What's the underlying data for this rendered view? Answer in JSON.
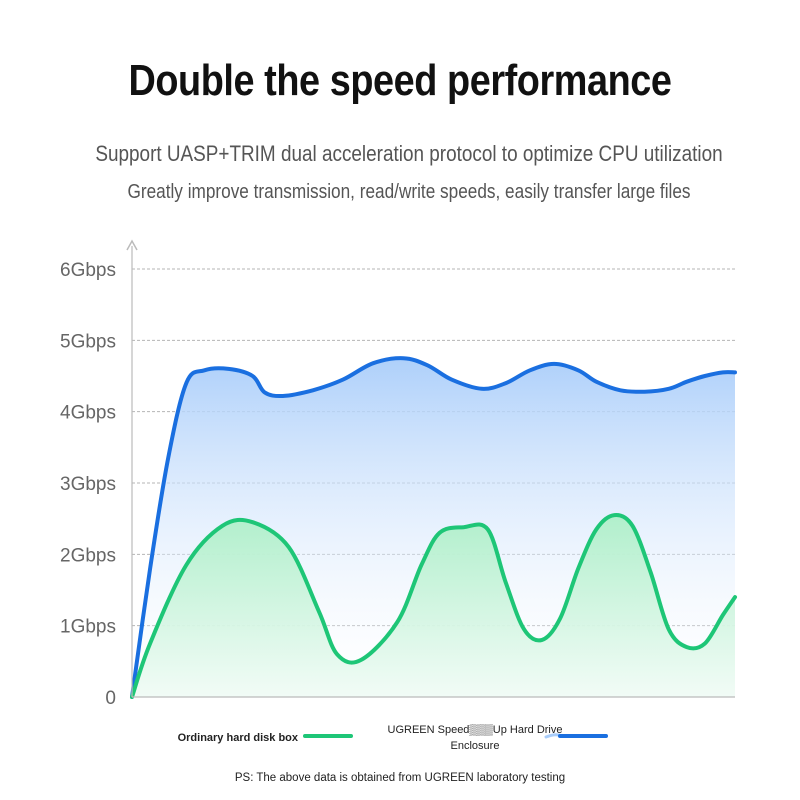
{
  "title": "Double the speed performance",
  "subtitle_1": "Support UASP+TRIM dual acceleration protocol to optimize CPU utilization",
  "subtitle_2": "Greatly improve transmission, read/write speeds, easily transfer large files",
  "footnote": "PS: The above data is obtained from UGREEN laboratory testing",
  "colors": {
    "green": "#1ec677",
    "blue": "#1a6fe0",
    "green_fill_top": "#aeefc9",
    "blue_fill_top": "#a9cdfa",
    "grid": "#b5b5b5",
    "axis": "#bbbbbb"
  },
  "chart_data": {
    "type": "area",
    "title": "Double the speed performance",
    "xlabel": "",
    "ylabel": "",
    "ylim": [
      0,
      6
    ],
    "xlim": [
      0,
      100
    ],
    "yticks": [
      {
        "value": 0,
        "label": "0"
      },
      {
        "value": 1,
        "label": "1Gbps"
      },
      {
        "value": 2,
        "label": "2Gbps"
      },
      {
        "value": 3,
        "label": "3Gbps"
      },
      {
        "value": 4,
        "label": "4Gbps"
      },
      {
        "value": 5,
        "label": "5Gbps"
      },
      {
        "value": 6,
        "label": "6Gbps"
      }
    ],
    "grid": true,
    "legend_position": "bottom",
    "series": [
      {
        "name": "Ordinary hard disk box",
        "color": "#1ec677",
        "x": [
          0,
          3,
          9,
          15,
          20,
          26,
          31,
          34,
          38,
          44,
          48,
          51,
          55,
          59,
          62,
          65,
          68,
          71,
          74,
          77,
          80,
          83,
          86,
          89,
          92,
          95,
          98,
          100
        ],
        "y": [
          0,
          0.75,
          1.85,
          2.4,
          2.45,
          2.1,
          1.2,
          0.6,
          0.52,
          1.05,
          1.85,
          2.3,
          2.38,
          2.35,
          1.6,
          0.95,
          0.8,
          1.1,
          1.8,
          2.35,
          2.55,
          2.4,
          1.75,
          0.95,
          0.7,
          0.75,
          1.15,
          1.4
        ]
      },
      {
        "name": "UGREEN Speed▒▒▒Up Hard Drive Enclosure",
        "name_line1": "UGREEN Speed▒▒▒Up Hard Drive",
        "name_line2": "Enclosure",
        "color": "#1a6fe0",
        "x": [
          0,
          3,
          6,
          9,
          12,
          16,
          20,
          22,
          25,
          30,
          35,
          40,
          45,
          49,
          53,
          58,
          62,
          66,
          70,
          74,
          77,
          81,
          85,
          89,
          92,
          95,
          98,
          100
        ],
        "y": [
          0,
          1.8,
          3.35,
          4.4,
          4.58,
          4.6,
          4.5,
          4.27,
          4.22,
          4.3,
          4.45,
          4.68,
          4.75,
          4.65,
          4.45,
          4.32,
          4.4,
          4.58,
          4.67,
          4.58,
          4.42,
          4.3,
          4.28,
          4.32,
          4.42,
          4.5,
          4.55,
          4.55
        ]
      }
    ]
  }
}
